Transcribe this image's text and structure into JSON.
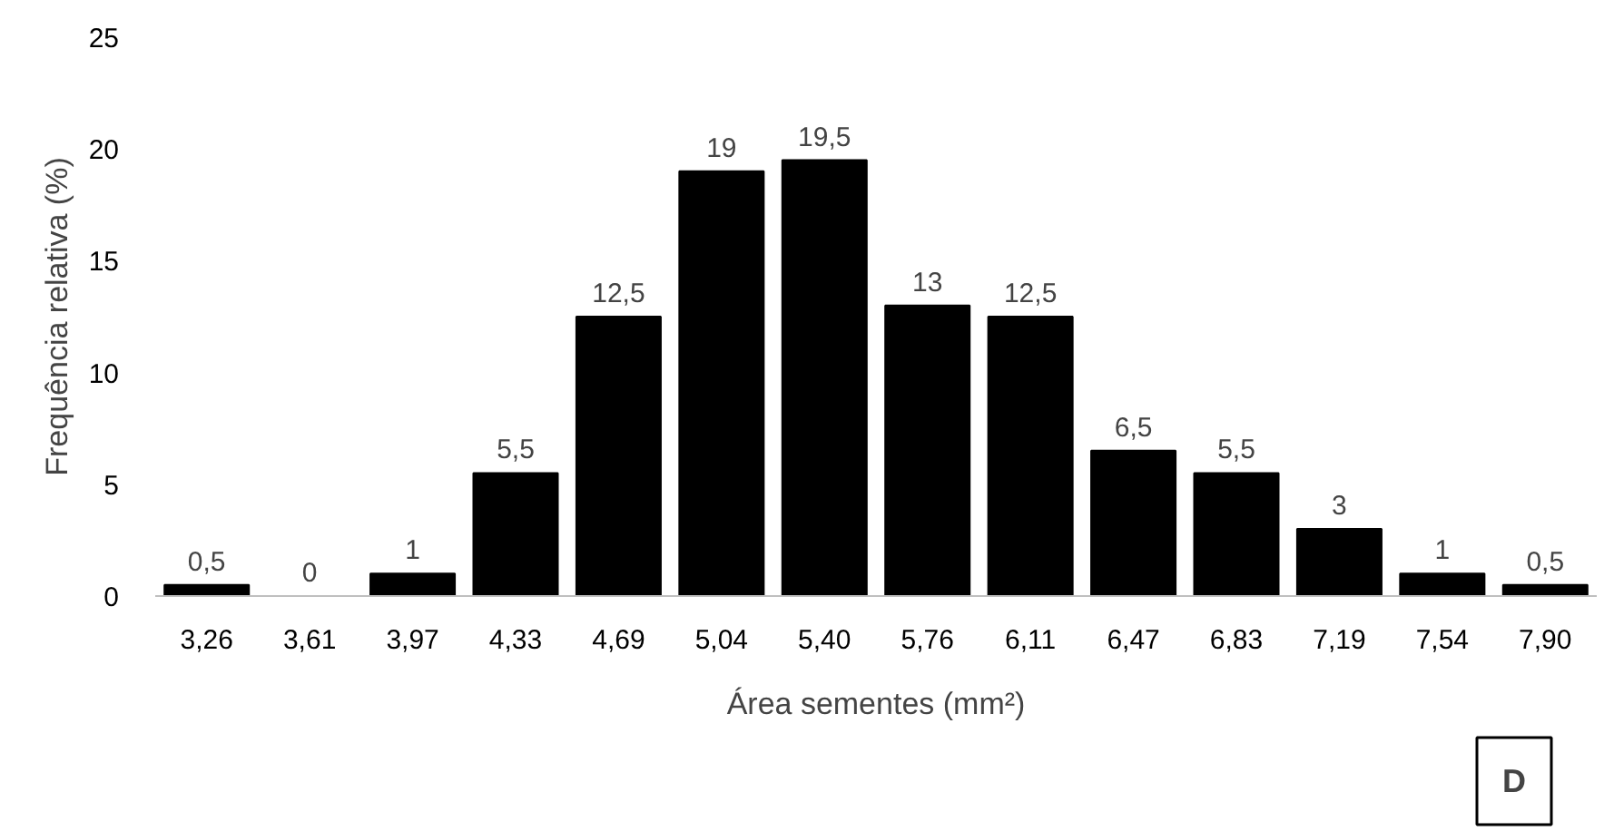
{
  "chart_data": {
    "type": "bar",
    "xlabel": "Área sementes (mm²)",
    "ylabel": "Frequência relativa (%)",
    "categories": [
      "3,26",
      "3,61",
      "3,97",
      "4,33",
      "4,69",
      "5,04",
      "5,40",
      "5,76",
      "6,11",
      "6,47",
      "6,83",
      "7,19",
      "7,54",
      "7,90"
    ],
    "values": [
      0.5,
      0,
      1,
      5.5,
      12.5,
      19,
      19.5,
      13,
      12.5,
      6.5,
      5.5,
      3,
      1,
      0.5
    ],
    "value_labels": [
      "0,5",
      "0",
      "1",
      "5,5",
      "12,5",
      "19",
      "19,5",
      "13",
      "12,5",
      "6,5",
      "5,5",
      "3",
      "1",
      "0,5"
    ],
    "color": "#000000",
    "ylim": [
      0,
      25
    ],
    "yticks": [
      0,
      5,
      10,
      15,
      20,
      25
    ],
    "grid": false,
    "annotations": [
      "D"
    ]
  }
}
